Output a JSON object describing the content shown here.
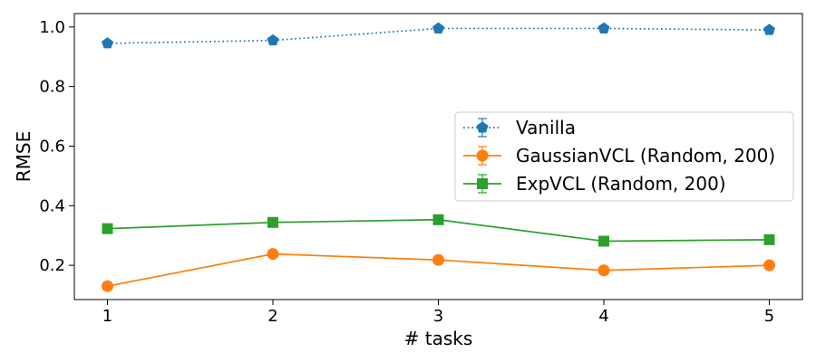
{
  "chart_data": {
    "type": "line",
    "xlabel": "# tasks",
    "ylabel": "RMSE",
    "x": [
      1,
      2,
      3,
      4,
      5
    ],
    "xticks": [
      "1",
      "2",
      "3",
      "4",
      "5"
    ],
    "xlim": [
      0.8,
      5.2
    ],
    "yticks": [
      "0.2",
      "0.4",
      "0.6",
      "0.8",
      "1.0"
    ],
    "ytick_values": [
      0.2,
      0.4,
      0.6,
      0.8,
      1.0
    ],
    "ylim": [
      0.085,
      1.045
    ],
    "grid": false,
    "legend_position": "center-right",
    "series": [
      {
        "name": "Vanilla",
        "values": [
          0.945,
          0.955,
          0.995,
          0.995,
          0.99
        ],
        "color": "#1f77b4",
        "marker": "pentagon",
        "linestyle": "dotted"
      },
      {
        "name": "GaussianVCL (Random, 200)",
        "values": [
          0.13,
          0.238,
          0.218,
          0.183,
          0.2
        ],
        "color": "#ff7f0e",
        "marker": "circle",
        "linestyle": "solid"
      },
      {
        "name": "ExpVCL (Random, 200)",
        "values": [
          0.323,
          0.344,
          0.353,
          0.281,
          0.286
        ],
        "color": "#2ca02c",
        "marker": "square",
        "linestyle": "solid"
      }
    ]
  }
}
